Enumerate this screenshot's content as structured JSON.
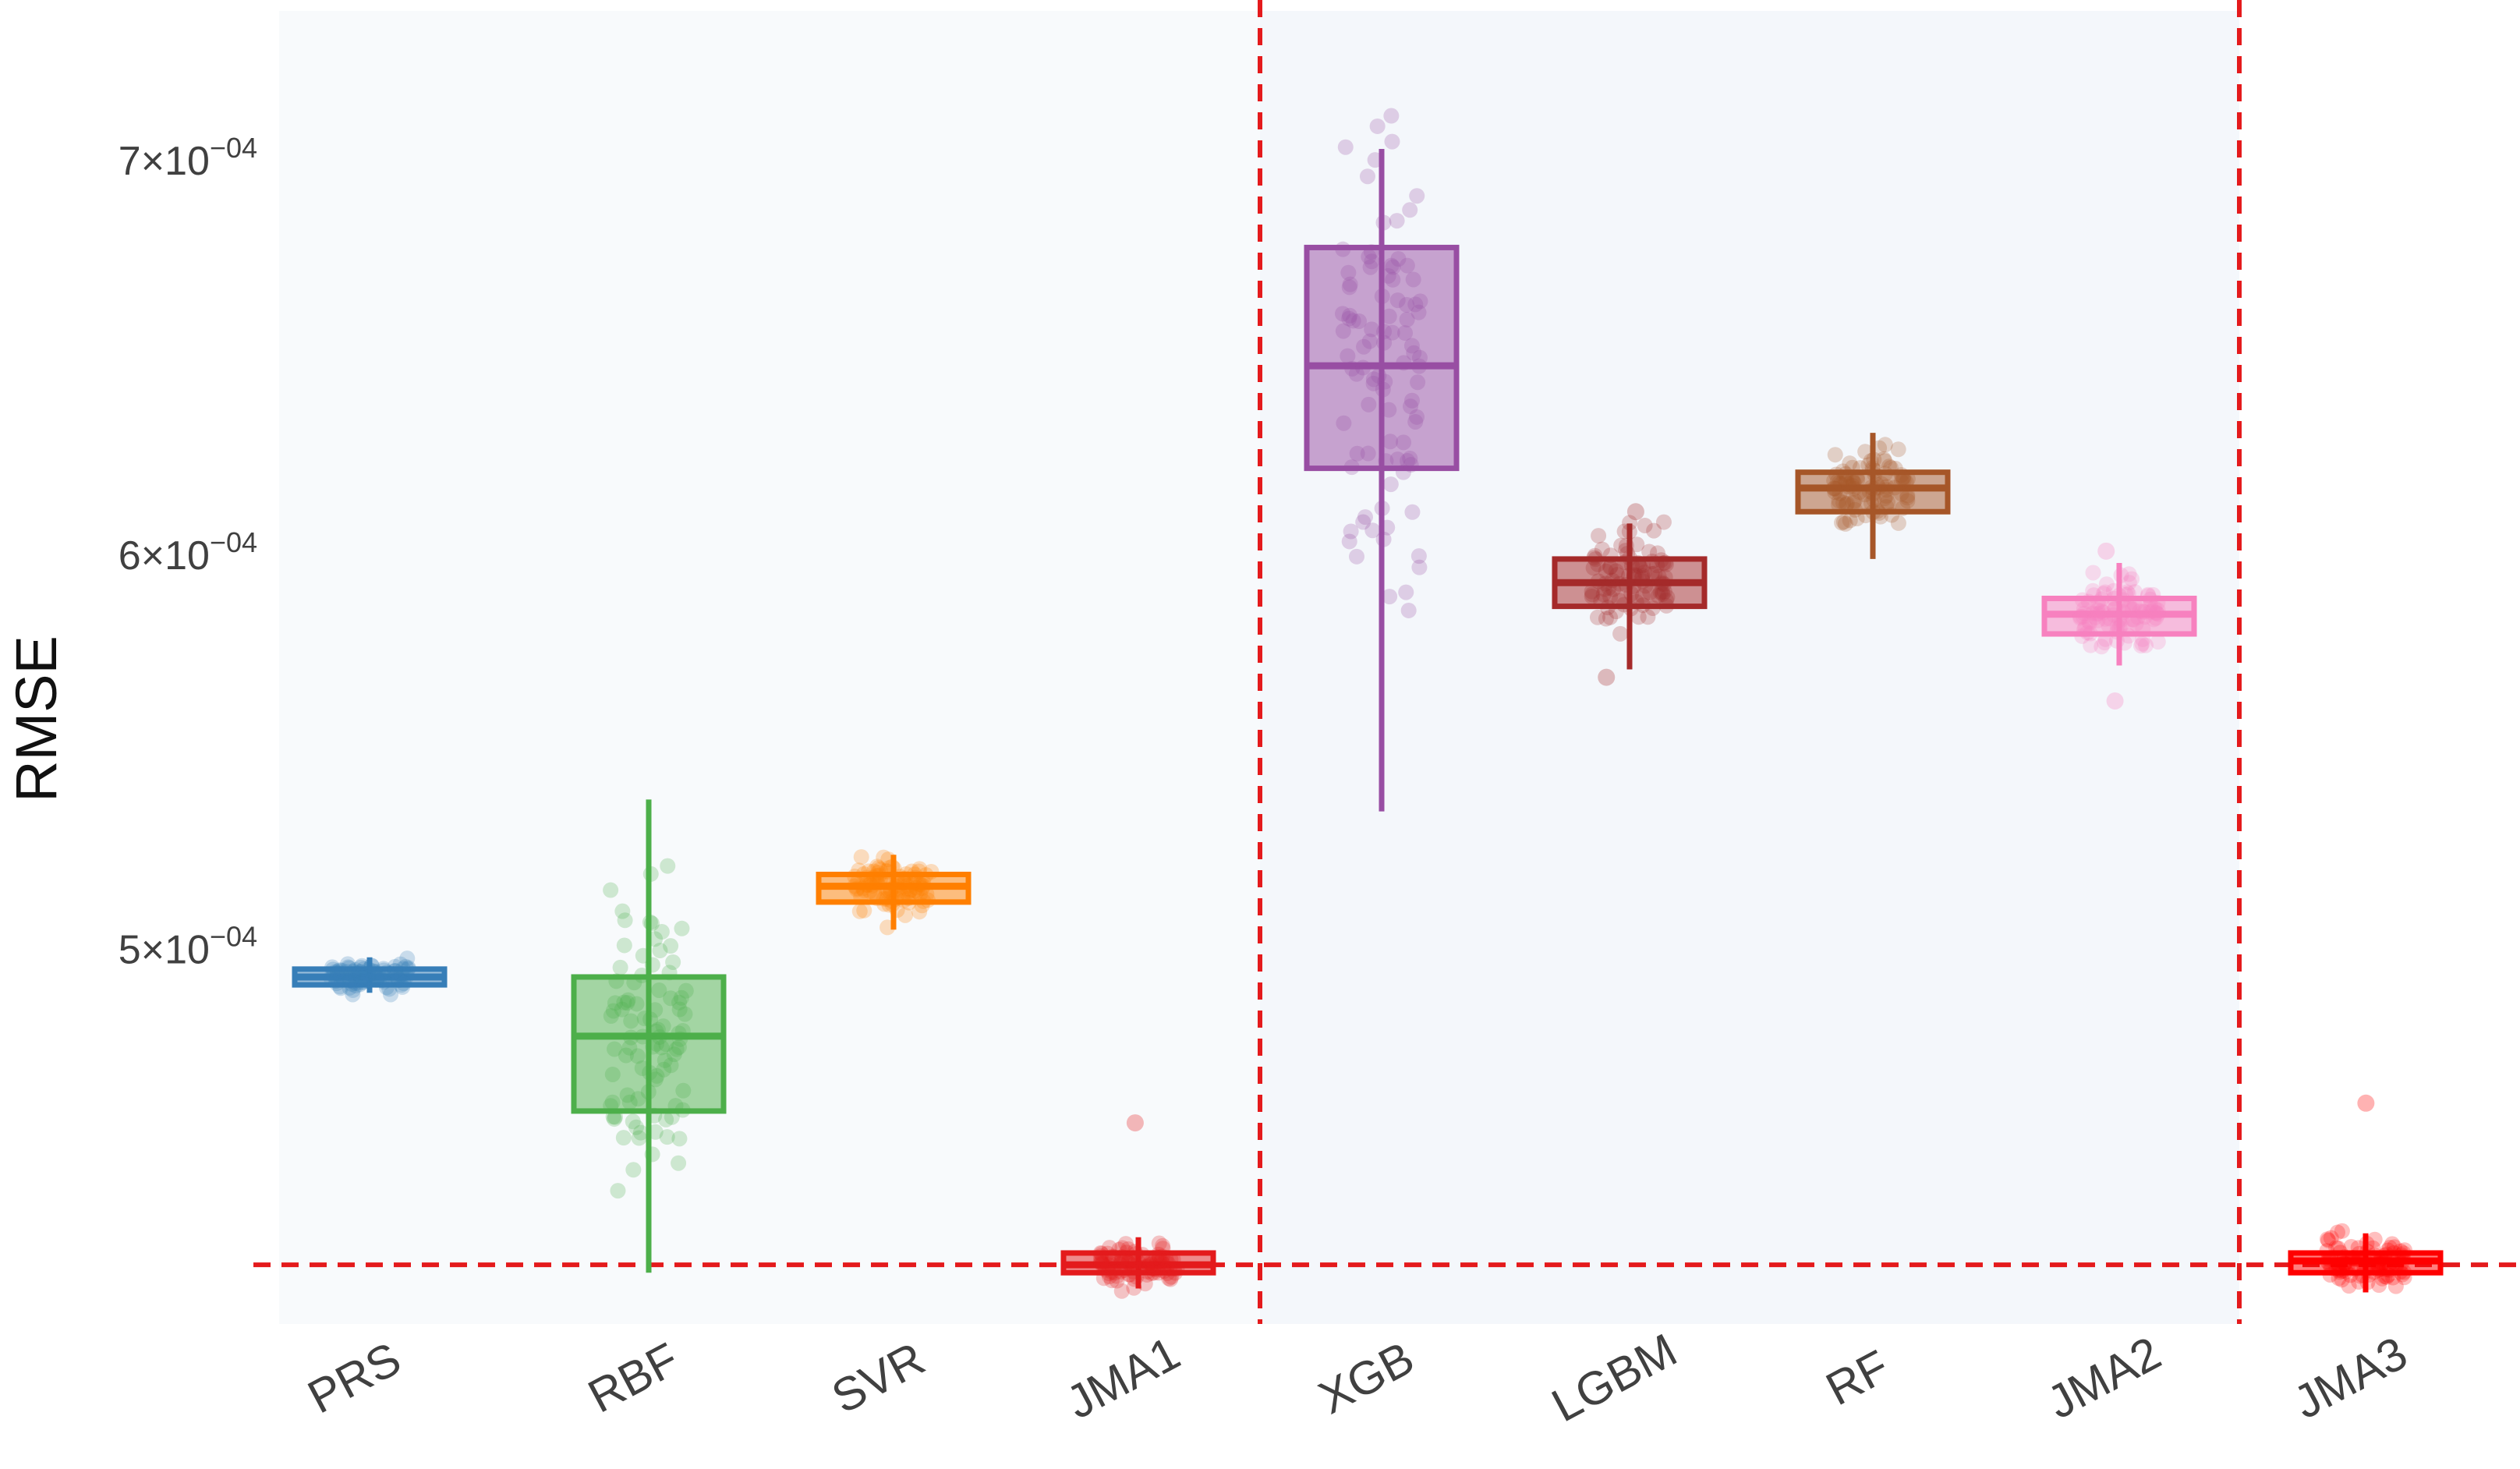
{
  "chart_data": {
    "type": "box",
    "title": "",
    "xlabel": "",
    "ylabel": "RMSE",
    "ylim": [
      0.000405,
      0.000738
    ],
    "grid": false,
    "y_ticks": [
      {
        "value": 0.0005,
        "mantissa": "5",
        "exponent": "−04"
      },
      {
        "value": 0.0006,
        "mantissa": "6",
        "exponent": "−04"
      },
      {
        "value": 0.0007,
        "mantissa": "7",
        "exponent": "−04"
      }
    ],
    "times_base": "×10",
    "categories": [
      "PRS",
      "RBF",
      "SVR",
      "JMA1",
      "XGB",
      "LGBM",
      "RF",
      "JMA2",
      "JMA3"
    ],
    "colors": [
      "#377eb8",
      "#4daf4a",
      "#ff7f00",
      "#e41a1c",
      "#984ea3",
      "#a52a2a",
      "#a65628",
      "#f781bf",
      "#ff0000"
    ],
    "series": [
      {
        "name": "PRS",
        "min": 0.000489,
        "q1": 0.000491,
        "median": 0.000493,
        "q3": 0.000495,
        "max": 0.000498,
        "outliers": []
      },
      {
        "name": "RBF",
        "min": 0.000418,
        "q1": 0.000459,
        "median": 0.000478,
        "q3": 0.000493,
        "max": 0.000538,
        "outliers": []
      },
      {
        "name": "SVR",
        "min": 0.000505,
        "q1": 0.000512,
        "median": 0.000516,
        "q3": 0.000519,
        "max": 0.000524,
        "outliers": []
      },
      {
        "name": "JMA1",
        "min": 0.000414,
        "q1": 0.000418,
        "median": 0.00042,
        "q3": 0.000423,
        "max": 0.000427,
        "outliers": [
          0.000456
        ]
      },
      {
        "name": "XGB",
        "min": 0.000535,
        "q1": 0.000622,
        "median": 0.000648,
        "q3": 0.000678,
        "max": 0.000703,
        "outliers": []
      },
      {
        "name": "LGBM",
        "min": 0.000571,
        "q1": 0.000587,
        "median": 0.000593,
        "q3": 0.000599,
        "max": 0.000608,
        "outliers": [
          0.000569,
          0.000611
        ]
      },
      {
        "name": "RF",
        "min": 0.000599,
        "q1": 0.000611,
        "median": 0.000617,
        "q3": 0.000621,
        "max": 0.000631,
        "outliers": []
      },
      {
        "name": "JMA2",
        "min": 0.000572,
        "q1": 0.00058,
        "median": 0.000585,
        "q3": 0.000589,
        "max": 0.000598,
        "outliers": [
          0.000563,
          0.000601
        ]
      },
      {
        "name": "JMA3",
        "min": 0.000413,
        "q1": 0.000418,
        "median": 0.000421,
        "q3": 0.000423,
        "max": 0.000428,
        "outliers": [
          0.000461
        ]
      }
    ],
    "reference_line_y": 0.00042,
    "group_dividers_after": [
      "JMA1",
      "JMA2"
    ],
    "reference_color": "#e41a1c",
    "background_color": "#f8fafc"
  }
}
